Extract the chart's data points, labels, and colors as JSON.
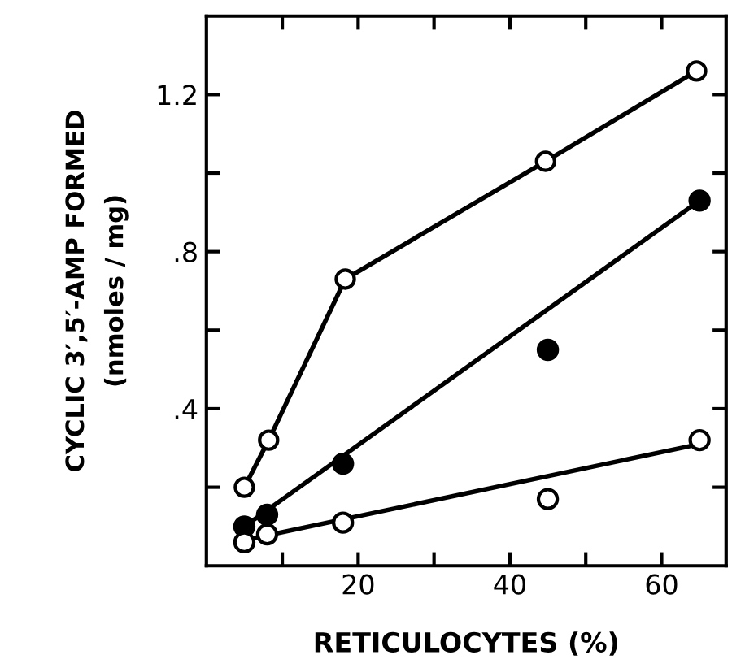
{
  "chart_data": {
    "type": "scatter",
    "xlabel": "RETICULOCYTES (%)",
    "ylabel": "CYCLIC 3′,5′-AMP FORMED\n(nmoles / mg)",
    "xlim": [
      0,
      68.5
    ],
    "ylim": [
      0,
      1.4
    ],
    "xticks": [
      {
        "value": 10,
        "label": null
      },
      20,
      {
        "value": 30,
        "label": null
      },
      40,
      {
        "value": 50,
        "label": null
      },
      60
    ],
    "yticks": [
      {
        "value": 0.2,
        "label": null
      },
      {
        "value": 0.4,
        "label": ".4"
      },
      {
        "value": 0.6,
        "label": null
      },
      {
        "value": 0.8,
        "label": ".8"
      },
      {
        "value": 1.0,
        "label": null
      },
      {
        "value": 1.2,
        "label": "1.2"
      }
    ],
    "grid": false,
    "legend": false,
    "series": [
      {
        "type": "line",
        "marker": "circle",
        "color": "#000000",
        "x": [
          5,
          8.2,
          18.3,
          44.7,
          64.6
        ],
        "values": [
          0.2,
          0.32,
          0.73,
          1.03,
          1.26
        ]
      },
      {
        "marker": "circle",
        "color": "#000000",
        "x": [
          5,
          8,
          18,
          45,
          65
        ],
        "values": [
          0.1,
          0.13,
          0.26,
          0.55,
          0.93
        ]
      },
      {
        "type": "line",
        "marker": "none",
        "color": "#000000",
        "x": [
          5,
          65
        ],
        "values": [
          0.1,
          0.93
        ]
      },
      {
        "marker": "circle",
        "color": "#ffffff",
        "x": [
          5,
          8,
          18,
          45,
          65
        ],
        "values": [
          0.06,
          0.08,
          0.11,
          0.17,
          0.32
        ]
      },
      {
        "type": "line",
        "marker": "none",
        "color": "#000000",
        "x": [
          5,
          65
        ],
        "values": [
          0.065,
          0.31
        ]
      }
    ]
  }
}
